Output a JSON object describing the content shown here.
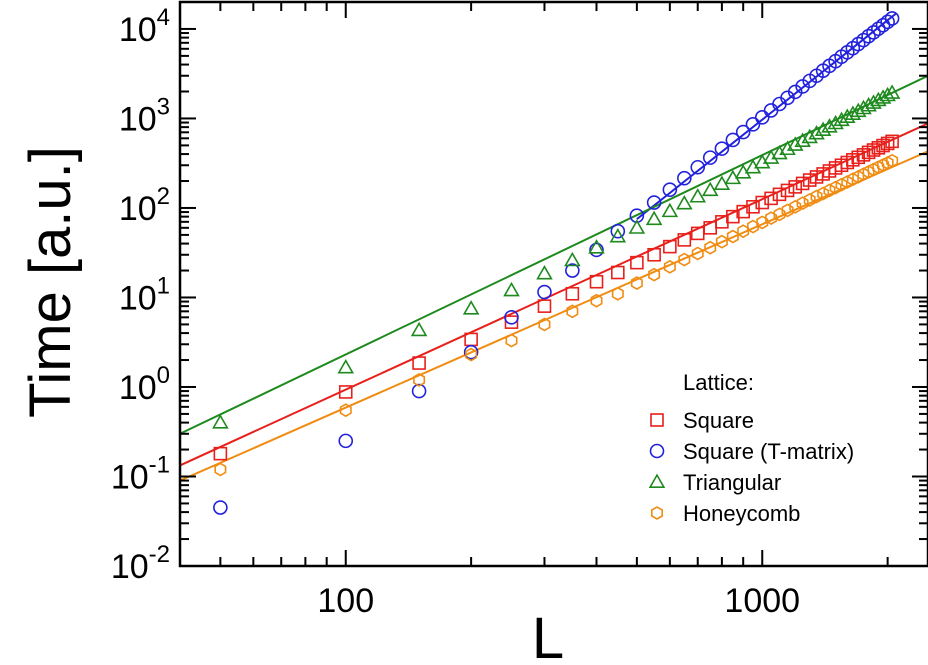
{
  "chart_data": {
    "type": "scatter",
    "xlabel": "L",
    "ylabel": "Time [a.u.]",
    "xscale": "log",
    "yscale": "log",
    "xlim": [
      40,
      2500
    ],
    "ylim": [
      0.01,
      20000
    ],
    "x_tick_labels": [
      "100",
      "1000"
    ],
    "x_tick_values": [
      100,
      1000
    ],
    "y_tick_labels": [
      {
        "base": "10",
        "exp": "-2",
        "value": 0.01
      },
      {
        "base": "10",
        "exp": "-1",
        "value": 0.1
      },
      {
        "base": "10",
        "exp": "0",
        "value": 1
      },
      {
        "base": "10",
        "exp": "1",
        "value": 10
      },
      {
        "base": "10",
        "exp": "2",
        "value": 100
      },
      {
        "base": "10",
        "exp": "3",
        "value": 1000
      },
      {
        "base": "10",
        "exp": "4",
        "value": 10000
      }
    ],
    "legend": {
      "title": "Lattice:",
      "placement": "bottom-right",
      "entries": [
        "Square",
        "Square (T-matrix)",
        "Triangular",
        "Honeycomb"
      ]
    },
    "series": [
      {
        "name": "Square",
        "color": "#e8201c",
        "marker": "square",
        "points": [
          [
            50,
            0.18
          ],
          [
            100,
            0.88
          ],
          [
            150,
            1.85
          ],
          [
            200,
            3.4
          ],
          [
            250,
            5.3
          ],
          [
            300,
            8.0
          ],
          [
            350,
            11.0
          ],
          [
            400,
            15.0
          ],
          [
            450,
            19.0
          ],
          [
            500,
            24.5
          ],
          [
            550,
            30
          ],
          [
            600,
            37
          ],
          [
            650,
            44
          ],
          [
            700,
            52
          ],
          [
            750,
            60
          ],
          [
            800,
            70
          ],
          [
            850,
            80
          ],
          [
            900,
            91
          ],
          [
            950,
            103
          ],
          [
            1000,
            115
          ],
          [
            1050,
            128
          ],
          [
            1100,
            142
          ],
          [
            1150,
            157
          ],
          [
            1200,
            172
          ],
          [
            1250,
            188
          ],
          [
            1300,
            205
          ],
          [
            1350,
            222
          ],
          [
            1400,
            240
          ],
          [
            1450,
            259
          ],
          [
            1500,
            280
          ],
          [
            1550,
            300
          ],
          [
            1600,
            322
          ],
          [
            1650,
            345
          ],
          [
            1700,
            368
          ],
          [
            1750,
            392
          ],
          [
            1800,
            418
          ],
          [
            1850,
            444
          ],
          [
            1900,
            470
          ],
          [
            1950,
            498
          ],
          [
            2000,
            526
          ],
          [
            2050,
            555
          ]
        ],
        "fit": {
          "x": [
            40,
            2500
          ],
          "y": [
            0.133,
            880
          ]
        }
      },
      {
        "name": "Square (T-matrix)",
        "color": "#2222dd",
        "marker": "circle",
        "points": [
          [
            50,
            0.045
          ],
          [
            100,
            0.25
          ],
          [
            150,
            0.9
          ],
          [
            200,
            2.45
          ],
          [
            250,
            6.0
          ],
          [
            300,
            11.5
          ],
          [
            350,
            20
          ],
          [
            400,
            34
          ],
          [
            450,
            55
          ],
          [
            500,
            82
          ],
          [
            550,
            115
          ],
          [
            600,
            160
          ],
          [
            650,
            215
          ],
          [
            700,
            285
          ],
          [
            750,
            365
          ],
          [
            800,
            460
          ],
          [
            850,
            575
          ],
          [
            900,
            705
          ],
          [
            950,
            860
          ],
          [
            1000,
            1030
          ],
          [
            1050,
            1230
          ],
          [
            1100,
            1450
          ],
          [
            1150,
            1700
          ],
          [
            1200,
            1980
          ],
          [
            1250,
            2280
          ],
          [
            1300,
            2630
          ],
          [
            1350,
            3000
          ],
          [
            1400,
            3420
          ],
          [
            1450,
            3870
          ],
          [
            1500,
            4360
          ],
          [
            1550,
            4900
          ],
          [
            1600,
            5480
          ],
          [
            1650,
            6100
          ],
          [
            1700,
            6780
          ],
          [
            1750,
            7500
          ],
          [
            1800,
            8300
          ],
          [
            1850,
            9150
          ],
          [
            1900,
            10050
          ],
          [
            1950,
            11000
          ],
          [
            2000,
            12000
          ],
          [
            2050,
            13100
          ]
        ],
        "fit": {
          "x": [
            500,
            2100
          ],
          "y": [
            75,
            15000
          ]
        }
      },
      {
        "name": "Triangular",
        "color": "#1e8a1e",
        "marker": "triangle",
        "points": [
          [
            50,
            0.4
          ],
          [
            100,
            1.65
          ],
          [
            150,
            4.3
          ],
          [
            200,
            7.5
          ],
          [
            250,
            12
          ],
          [
            300,
            18.5
          ],
          [
            350,
            26
          ],
          [
            400,
            36
          ],
          [
            450,
            48
          ],
          [
            500,
            60
          ],
          [
            550,
            75
          ],
          [
            600,
            92
          ],
          [
            650,
            112
          ],
          [
            700,
            134
          ],
          [
            750,
            158
          ],
          [
            800,
            185
          ],
          [
            850,
            215
          ],
          [
            900,
            248
          ],
          [
            950,
            283
          ],
          [
            1000,
            322
          ],
          [
            1050,
            363
          ],
          [
            1100,
            407
          ],
          [
            1150,
            455
          ],
          [
            1200,
            506
          ],
          [
            1250,
            560
          ],
          [
            1300,
            617
          ],
          [
            1350,
            678
          ],
          [
            1400,
            742
          ],
          [
            1450,
            810
          ],
          [
            1500,
            882
          ],
          [
            1550,
            958
          ],
          [
            1600,
            1037
          ],
          [
            1650,
            1120
          ],
          [
            1700,
            1207
          ],
          [
            1750,
            1298
          ],
          [
            1800,
            1393
          ],
          [
            1850,
            1492
          ],
          [
            1900,
            1595
          ],
          [
            1950,
            1702
          ],
          [
            2000,
            1813
          ],
          [
            2050,
            1930
          ]
        ],
        "fit": {
          "x": [
            40,
            2500
          ],
          "y": [
            0.3,
            3000
          ]
        }
      },
      {
        "name": "Honeycomb",
        "color": "#f08c12",
        "marker": "hexagon",
        "points": [
          [
            50,
            0.12
          ],
          [
            100,
            0.55
          ],
          [
            150,
            1.2
          ],
          [
            200,
            2.3
          ],
          [
            250,
            3.3
          ],
          [
            300,
            5.0
          ],
          [
            350,
            7.0
          ],
          [
            400,
            9.2
          ],
          [
            450,
            11.0
          ],
          [
            500,
            14.5
          ],
          [
            550,
            18
          ],
          [
            600,
            22
          ],
          [
            650,
            26.5
          ],
          [
            700,
            31
          ],
          [
            750,
            36
          ],
          [
            800,
            42
          ],
          [
            850,
            48
          ],
          [
            900,
            55
          ],
          [
            950,
            62
          ],
          [
            1000,
            69
          ],
          [
            1050,
            77
          ],
          [
            1100,
            85
          ],
          [
            1150,
            94
          ],
          [
            1200,
            103
          ],
          [
            1250,
            113
          ],
          [
            1300,
            123
          ],
          [
            1350,
            134
          ],
          [
            1400,
            145
          ],
          [
            1450,
            157
          ],
          [
            1500,
            169
          ],
          [
            1550,
            182
          ],
          [
            1600,
            195
          ],
          [
            1650,
            209
          ],
          [
            1700,
            223
          ],
          [
            1750,
            238
          ],
          [
            1800,
            253
          ],
          [
            1850,
            269
          ],
          [
            1900,
            285
          ],
          [
            1950,
            302
          ],
          [
            2000,
            319
          ],
          [
            2050,
            337
          ]
        ],
        "fit": {
          "x": [
            40,
            2500
          ],
          "y": [
            0.09,
            430
          ]
        }
      }
    ]
  }
}
